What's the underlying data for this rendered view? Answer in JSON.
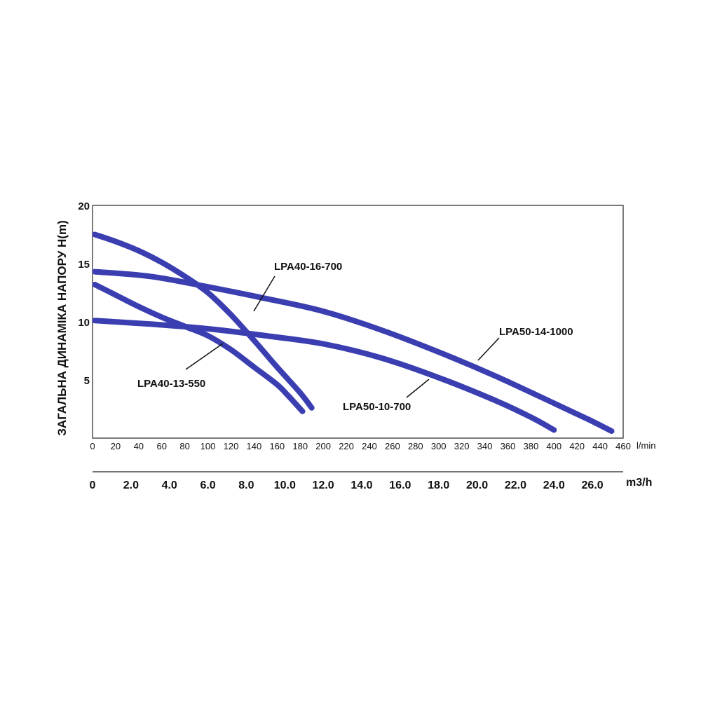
{
  "chart_data": {
    "type": "line",
    "title": "",
    "ylabel": "ЗАГАЛЬНА ДИНАМІКА НАПОРУ H(m)",
    "xlabel_flow": "l/min",
    "xlabel_m3": "m3/h",
    "xlim": [
      0,
      460
    ],
    "ylim": [
      0,
      20
    ],
    "grid": false,
    "legend": "inline labels",
    "y_ticks": [
      20,
      15,
      10,
      5
    ],
    "x_ticks": [
      0,
      20,
      40,
      60,
      80,
      100,
      120,
      140,
      160,
      180,
      200,
      220,
      240,
      260,
      280,
      300,
      320,
      340,
      360,
      380,
      400,
      420,
      440,
      460
    ],
    "x2_ticks": [
      "0",
      "2.0",
      "4.0",
      "6.0",
      "8.0",
      "10.0",
      "12.0",
      "14.0",
      "16.0",
      "18.0",
      "20.0",
      "22.0",
      "24.0",
      "26.0"
    ],
    "x2_values": [
      0,
      2,
      4,
      6,
      8,
      10,
      12,
      14,
      16,
      18,
      20,
      22,
      24,
      26
    ],
    "color": "#3a3eb0",
    "series": [
      {
        "name": "LPA40-16-700",
        "x": [
          2,
          20,
          40,
          60,
          80,
          100,
          120,
          140,
          160,
          180,
          190
        ],
        "y": [
          17.5,
          16.9,
          16.1,
          15.1,
          13.9,
          12.5,
          10.6,
          8.4,
          6.1,
          3.9,
          2.6
        ]
      },
      {
        "name": "LPA40-13-550",
        "x": [
          2,
          20,
          40,
          60,
          80,
          100,
          120,
          140,
          160,
          170,
          182
        ],
        "y": [
          13.2,
          12.3,
          11.3,
          10.4,
          9.6,
          8.8,
          7.6,
          6.1,
          4.6,
          3.6,
          2.3
        ]
      },
      {
        "name": "LPA50-14-1000",
        "x": [
          2,
          50,
          100,
          150,
          200,
          250,
          300,
          350,
          400,
          430,
          450
        ],
        "y": [
          14.3,
          13.9,
          13.0,
          12.0,
          10.9,
          9.3,
          7.4,
          5.3,
          3.0,
          1.6,
          0.6
        ]
      },
      {
        "name": "LPA50-10-700",
        "x": [
          2,
          50,
          100,
          150,
          200,
          250,
          300,
          350,
          380,
          400
        ],
        "y": [
          10.1,
          9.8,
          9.4,
          8.8,
          8.1,
          6.9,
          5.2,
          3.2,
          1.8,
          0.7
        ]
      }
    ]
  }
}
